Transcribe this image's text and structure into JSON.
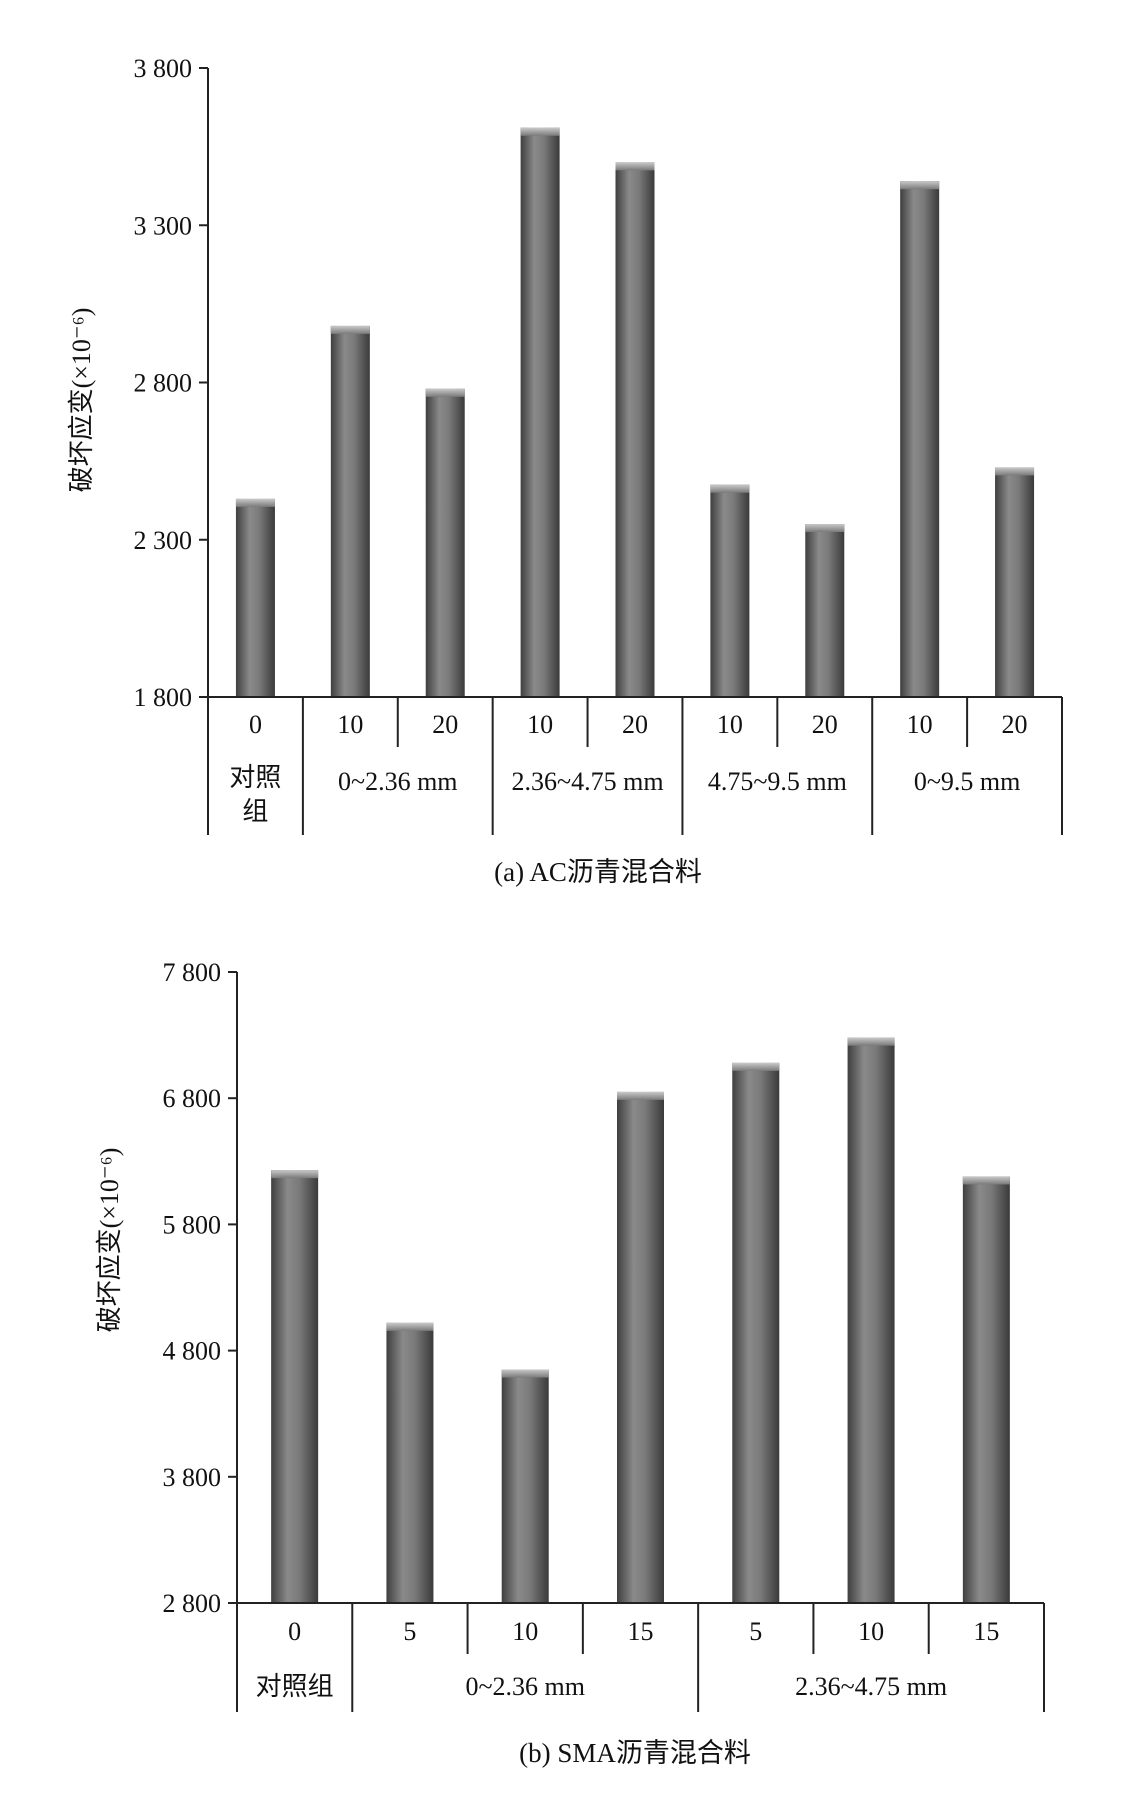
{
  "chart_data": [
    {
      "type": "bar",
      "caption": "(a) AC沥青混合料",
      "ylabel": "破坏应变(×10⁻⁶)",
      "ylim": [
        1800,
        3800
      ],
      "yticks": [
        1800,
        2300,
        2800,
        3300,
        3800
      ],
      "ytick_labels": [
        "1 800",
        "2 300",
        "2 800",
        "3 300",
        "3 800"
      ],
      "categories": [
        "0",
        "10",
        "20",
        "10",
        "20",
        "10",
        "20",
        "10",
        "20"
      ],
      "values": [
        2430,
        2980,
        2780,
        3610,
        3500,
        2475,
        2350,
        3440,
        2530
      ],
      "groups": [
        {
          "label": "对照组",
          "span": 1
        },
        {
          "label": "0~2.36 mm",
          "span": 2
        },
        {
          "label": "2.36~4.75 mm",
          "span": 2
        },
        {
          "label": "4.75~9.5 mm",
          "span": 2
        },
        {
          "label": "0~9.5 mm",
          "span": 2
        }
      ],
      "grid": false,
      "bar_color": "#6b6b6b"
    },
    {
      "type": "bar",
      "caption": "(b) SMA沥青混合料",
      "ylabel": "破坏应变(×10⁻⁶)",
      "ylim": [
        2800,
        7800
      ],
      "yticks": [
        2800,
        3800,
        4800,
        5800,
        6800,
        7800
      ],
      "ytick_labels": [
        "2 800",
        "3 800",
        "4 800",
        "5 800",
        "6 800",
        "7 800"
      ],
      "categories": [
        "0",
        "5",
        "10",
        "15",
        "5",
        "10",
        "15"
      ],
      "values": [
        6230,
        5020,
        4650,
        6850,
        7080,
        7280,
        6180
      ],
      "groups": [
        {
          "label": "对照组",
          "span": 1
        },
        {
          "label": "0~2.36 mm",
          "span": 3
        },
        {
          "label": "2.36~4.75 mm",
          "span": 3
        }
      ],
      "grid": false,
      "bar_color": "#6b6b6b"
    }
  ]
}
